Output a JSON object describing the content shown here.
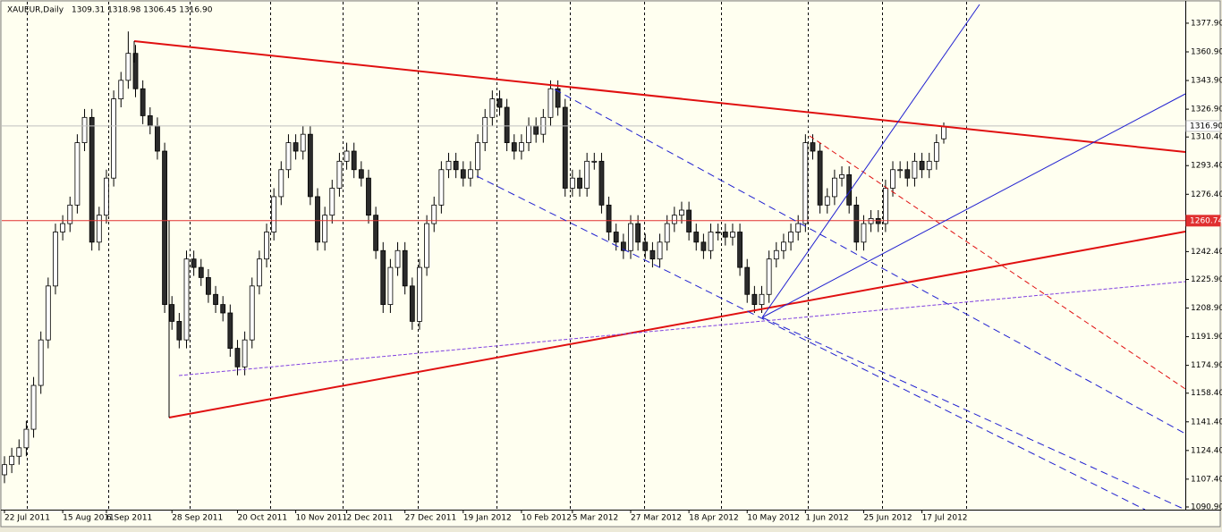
{
  "chart_data": {
    "type": "candlestick",
    "title": "XAUEUR,Daily",
    "subtitle": "1309.31 1318.98 1306.45 1316.90",
    "categories": [
      "22 Jul 2011",
      null,
      null,
      null,
      null,
      null,
      null,
      null,
      "15 Aug 2011",
      null,
      null,
      null,
      null,
      null,
      "6 Sep 2011",
      null,
      null,
      null,
      null,
      null,
      null,
      null,
      null,
      "28 Sep 2011",
      null,
      null,
      null,
      null,
      null,
      null,
      null,
      null,
      "20 Oct 2011",
      null,
      null,
      null,
      null,
      null,
      null,
      null,
      "10 Nov 2011",
      null,
      null,
      null,
      null,
      null,
      null,
      "2 Dec 2011",
      null,
      null,
      null,
      null,
      null,
      null,
      null,
      "27 Dec 2011",
      null,
      null,
      null,
      null,
      null,
      null,
      null,
      "19 Jan 2012",
      null,
      null,
      null,
      null,
      null,
      null,
      null,
      "10 Feb 2012",
      null,
      null,
      null,
      null,
      null,
      null,
      "5 Mar 2012",
      null,
      null,
      null,
      null,
      null,
      null,
      null,
      "27 Mar 2012",
      null,
      null,
      null,
      null,
      null,
      null,
      null,
      "18 Apr 2012",
      null,
      null,
      null,
      null,
      null,
      null,
      null,
      "10 May 2012",
      null,
      null,
      null,
      null,
      null,
      null,
      null,
      "1 Jun 2012",
      null,
      null,
      null,
      null,
      null,
      null,
      null,
      "25 Jun 2012",
      null,
      null,
      null,
      null,
      null,
      null,
      null,
      "17 Jul 2012",
      null,
      null,
      null
    ],
    "open": [
      1110,
      1116,
      1121,
      1126,
      1137,
      1163,
      1190,
      1222,
      1254,
      1259,
      1270,
      1307,
      1322,
      1248,
      1264,
      1286,
      1333,
      1344,
      1360,
      1339,
      1323,
      1317,
      1302,
      1211,
      1201,
      1190,
      1238,
      1233,
      1227,
      1217,
      1211,
      1206,
      1185,
      1174,
      1190,
      1222,
      1238,
      1254,
      1275,
      1291,
      1307,
      1302,
      1312,
      1275,
      1248,
      1264,
      1280,
      1296,
      1302,
      1291,
      1286,
      1264,
      1243,
      1211,
      1233,
      1243,
      1222,
      1201,
      1233,
      1259,
      1270,
      1291,
      1296,
      1291,
      1286,
      1291,
      1307,
      1322,
      1333,
      1328,
      1307,
      1302,
      1307,
      1317,
      1312,
      1322,
      1339,
      1328,
      1280,
      1286,
      1280,
      1296,
      1296,
      1270,
      1254,
      1248,
      1243,
      1259,
      1248,
      1243,
      1238,
      1248,
      1259,
      1264,
      1267,
      1254,
      1248,
      1243,
      1254,
      1254,
      1251,
      1254,
      1233,
      1217,
      1211,
      1217,
      1238,
      1243,
      1248,
      1254,
      1259,
      1307,
      1302,
      1270,
      1275,
      1286,
      1288,
      1270,
      1248,
      1259,
      1262,
      1259,
      1280,
      1291,
      1291,
      1286,
      1296,
      1291,
      1296,
      1309.31
    ],
    "high": [
      1121,
      1126,
      1131,
      1142,
      1168,
      1195,
      1227,
      1259,
      1264,
      1275,
      1312,
      1327,
      1327,
      1269,
      1291,
      1338,
      1349,
      1373,
      1365,
      1344,
      1328,
      1322,
      1307,
      1216,
      1206,
      1243,
      1243,
      1238,
      1232,
      1222,
      1216,
      1211,
      1190,
      1195,
      1227,
      1243,
      1259,
      1280,
      1296,
      1312,
      1312,
      1317,
      1317,
      1280,
      1269,
      1285,
      1301,
      1307,
      1307,
      1296,
      1291,
      1269,
      1248,
      1238,
      1248,
      1248,
      1227,
      1238,
      1264,
      1275,
      1296,
      1301,
      1301,
      1296,
      1296,
      1312,
      1327,
      1338,
      1338,
      1333,
      1312,
      1312,
      1322,
      1322,
      1327,
      1344,
      1344,
      1333,
      1291,
      1291,
      1301,
      1301,
      1301,
      1275,
      1259,
      1253,
      1264,
      1264,
      1253,
      1248,
      1253,
      1264,
      1269,
      1272,
      1272,
      1259,
      1253,
      1259,
      1259,
      1259,
      1259,
      1259,
      1238,
      1222,
      1222,
      1243,
      1248,
      1253,
      1259,
      1264,
      1312,
      1312,
      1307,
      1280,
      1291,
      1293,
      1293,
      1275,
      1264,
      1267,
      1267,
      1285,
      1296,
      1296,
      1296,
      1301,
      1301,
      1301,
      1312,
      1318.98
    ],
    "low": [
      1105,
      1111,
      1116,
      1121,
      1132,
      1158,
      1185,
      1217,
      1249,
      1254,
      1265,
      1302,
      1243,
      1243,
      1259,
      1281,
      1328,
      1339,
      1334,
      1318,
      1312,
      1297,
      1206,
      1196,
      1185,
      1185,
      1228,
      1222,
      1212,
      1206,
      1201,
      1180,
      1169,
      1169,
      1185,
      1217,
      1233,
      1249,
      1270,
      1286,
      1297,
      1297,
      1270,
      1243,
      1243,
      1259,
      1275,
      1291,
      1286,
      1281,
      1259,
      1238,
      1206,
      1206,
      1228,
      1217,
      1196,
      1196,
      1228,
      1254,
      1265,
      1286,
      1286,
      1281,
      1281,
      1286,
      1302,
      1317,
      1323,
      1302,
      1297,
      1297,
      1302,
      1307,
      1307,
      1317,
      1323,
      1275,
      1275,
      1275,
      1275,
      1291,
      1265,
      1249,
      1243,
      1238,
      1238,
      1243,
      1238,
      1233,
      1233,
      1243,
      1254,
      1259,
      1249,
      1243,
      1238,
      1238,
      1249,
      1246,
      1246,
      1228,
      1212,
      1206,
      1206,
      1212,
      1233,
      1238,
      1243,
      1249,
      1254,
      1297,
      1265,
      1265,
      1270,
      1281,
      1265,
      1243,
      1243,
      1254,
      1254,
      1254,
      1275,
      1286,
      1281,
      1281,
      1286,
      1286,
      1291,
      1306.45
    ],
    "close": [
      1116,
      1121,
      1126,
      1137,
      1163,
      1190,
      1222,
      1254,
      1259,
      1270,
      1307,
      1322,
      1248,
      1264,
      1286,
      1333,
      1344,
      1360,
      1339,
      1323,
      1317,
      1302,
      1211,
      1201,
      1190,
      1238,
      1233,
      1227,
      1217,
      1211,
      1206,
      1185,
      1174,
      1190,
      1222,
      1238,
      1254,
      1275,
      1291,
      1307,
      1302,
      1312,
      1275,
      1248,
      1264,
      1280,
      1296,
      1302,
      1291,
      1286,
      1264,
      1243,
      1211,
      1233,
      1243,
      1222,
      1201,
      1233,
      1259,
      1270,
      1291,
      1296,
      1291,
      1286,
      1291,
      1307,
      1322,
      1333,
      1328,
      1307,
      1302,
      1307,
      1317,
      1312,
      1322,
      1339,
      1328,
      1280,
      1286,
      1280,
      1296,
      1296,
      1270,
      1254,
      1248,
      1243,
      1259,
      1248,
      1243,
      1238,
      1248,
      1259,
      1264,
      1267,
      1254,
      1248,
      1243,
      1254,
      1254,
      1251,
      1254,
      1233,
      1217,
      1211,
      1217,
      1238,
      1243,
      1248,
      1254,
      1259,
      1307,
      1302,
      1270,
      1275,
      1286,
      1288,
      1270,
      1248,
      1259,
      1262,
      1259,
      1280,
      1291,
      1291,
      1286,
      1296,
      1291,
      1296,
      1307,
      1316.9
    ],
    "bull_color": "#ffffff",
    "bear_color": "#2b2b2b",
    "ylim": [
      1089.3,
      1390.6
    ],
    "yticks": [
      {
        "value": 1377.9,
        "label": "1377.90"
      },
      {
        "value": 1360.9,
        "label": "1360.90"
      },
      {
        "value": 1343.9,
        "label": "1343.90"
      },
      {
        "value": 1326.9,
        "label": "1326.90"
      },
      {
        "value": 1310.4,
        "label": "1310.40"
      },
      {
        "value": 1293.4,
        "label": "1293.40"
      },
      {
        "value": 1276.4,
        "label": "1276.40"
      },
      {
        "value": 1242.4,
        "label": "1242.40"
      },
      {
        "value": 1225.9,
        "label": "1225.90"
      },
      {
        "value": 1208.9,
        "label": "1208.90"
      },
      {
        "value": 1191.9,
        "label": "1191.90"
      },
      {
        "value": 1174.9,
        "label": "1174.90"
      },
      {
        "value": 1158.4,
        "label": "1158.40"
      },
      {
        "value": 1141.4,
        "label": "1141.40"
      },
      {
        "value": 1124.4,
        "label": "1124.40"
      },
      {
        "value": 1107.4,
        "label": "1107.40"
      },
      {
        "value": 1090.9,
        "label": "1090.90"
      }
    ],
    "price_lines": [
      {
        "value": 1316.9,
        "label": "1316.90",
        "color": "#c0c0c0",
        "label_bg": "#ffffff",
        "label_color": "#000000"
      },
      {
        "value": 1260.74,
        "label": "1260.74",
        "color": "#e03030",
        "label_bg": "#e03030",
        "label_color": "#ffffff"
      }
    ]
  }
}
